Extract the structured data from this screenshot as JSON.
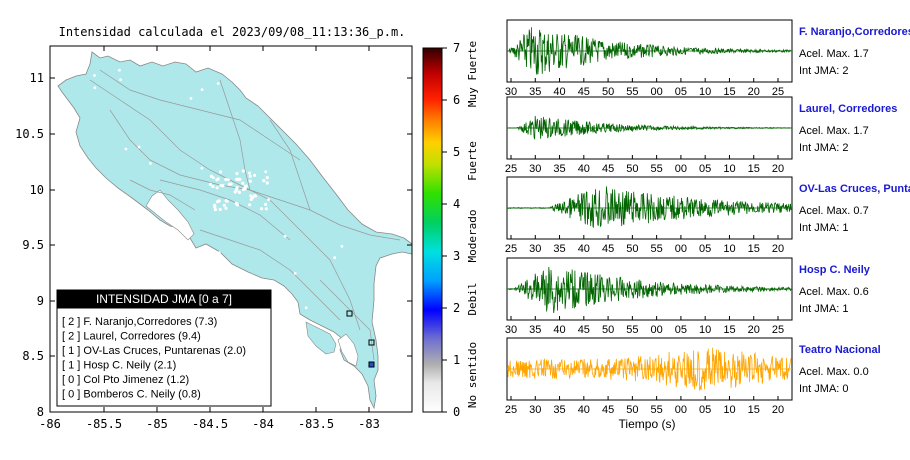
{
  "map": {
    "title": "Intensidad calculada el 2023/09/08_11:13:36_p.m.",
    "x_ticks": [
      "-86",
      "-85.5",
      "-85",
      "-84.5",
      "-84",
      "-83.5",
      "-83"
    ],
    "y_ticks": [
      "11",
      "10.5",
      "10",
      "9.5",
      "9",
      "8.5",
      "8"
    ],
    "xlim": [
      -86,
      -82.5
    ],
    "ylim": [
      8,
      11.3
    ],
    "land_color": "#aee8ea",
    "sea_color": "#ffffff"
  },
  "colorbar": {
    "ticks": [
      "0",
      "1",
      "2",
      "3",
      "4",
      "5",
      "6",
      "7"
    ],
    "labels": [
      "No sentido",
      "Debil",
      "Moderado",
      "Fuerte",
      "Muy Fuerte"
    ],
    "range": [
      0,
      7
    ]
  },
  "legend": {
    "title": "INTENSIDAD JMA [0 a 7]",
    "rows": [
      "[ 2 ]  F. Naranjo,Corredores (7.3)",
      "[ 2 ]  Laurel, Corredores (9.4)",
      "[ 1 ]  OV-Las Cruces, Puntarenas (2.0)",
      "[ 1 ]  Hosp C. Neily (2.1)",
      "[ 0 ]  Col Pto Jimenez (1.2)",
      "[ 0 ]  Bomberos C. Neily (0.8)"
    ]
  },
  "chart_data": {
    "type": "line",
    "xlabel": "Tiempo (s)",
    "panels": [
      {
        "station": "F. Naranjo,Corredores",
        "acel": "Acel. Max. 1.7",
        "jma": "Int JMA: 2",
        "ticks": [
          "30",
          "35",
          "40",
          "45",
          "50",
          "55",
          "00",
          "05",
          "10",
          "15",
          "20",
          "25"
        ],
        "onset": 0.0,
        "peak_time": 0.09,
        "amplitude": 0.95,
        "decay": 3.6,
        "color": "#006400"
      },
      {
        "station": "Laurel, Corredores",
        "acel": "Acel. Max. 1.7",
        "jma": "Int JMA: 2",
        "ticks": [
          "25",
          "30",
          "35",
          "40",
          "45",
          "50",
          "55",
          "00",
          "05",
          "10",
          "15",
          "20"
        ],
        "onset": 0.03,
        "peak_time": 0.1,
        "amplitude": 0.45,
        "decay": 4.0,
        "color": "#006400"
      },
      {
        "station": "OV-Las Cruces, Puntarenas",
        "acel": "Acel. Max. 0.7",
        "jma": "Int JMA: 1",
        "ticks": [
          "25",
          "30",
          "35",
          "40",
          "45",
          "50",
          "55",
          "00",
          "05",
          "10",
          "15",
          "20"
        ],
        "onset": 0.14,
        "peak_time": 0.32,
        "amplitude": 0.8,
        "decay": 2.4,
        "color": "#006400"
      },
      {
        "station": "Hosp C. Neily",
        "acel": "Acel. Max. 0.6",
        "jma": "Int JMA: 1",
        "ticks": [
          "30",
          "35",
          "40",
          "45",
          "50",
          "55",
          "00",
          "05",
          "10",
          "15",
          "20",
          "25"
        ],
        "onset": 0.02,
        "peak_time": 0.15,
        "amplitude": 0.9,
        "decay": 3.2,
        "color": "#006400"
      },
      {
        "station": "Teatro Nacional",
        "acel": "Acel. Max. 0.0",
        "jma": "Int JMA: 0",
        "ticks": [
          "25",
          "30",
          "35",
          "40",
          "45",
          "50",
          "55",
          "00",
          "05",
          "10",
          "15",
          "20"
        ],
        "onset": 0.0,
        "peak_time": 0.7,
        "amplitude": 0.75,
        "decay": 0.0,
        "color": "#ffa500"
      }
    ]
  }
}
